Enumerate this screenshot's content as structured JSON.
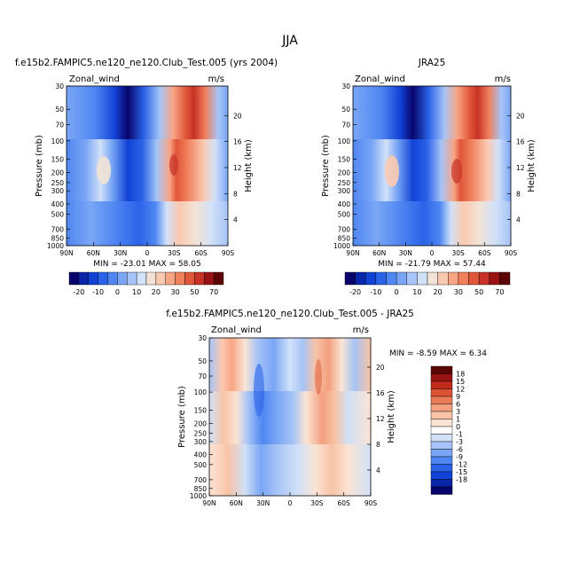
{
  "page": {
    "title": "JJA"
  },
  "panels": {
    "model": {
      "title": "f.e15b2.FAMPIC5.ne120_ne120.Club_Test.005 (yrs 2004)",
      "varname": "Zonal_wind",
      "units": "m/s",
      "stats": "MIN = -23.01   MAX =  58.05"
    },
    "obs": {
      "title": "JRA25",
      "varname": "Zonal_wind",
      "units": "m/s",
      "stats": "MIN = -21.79   MAX =  57.44"
    },
    "diff": {
      "title": "f.e15b2.FAMPIC5.ne120_ne120.Club_Test.005 - JRA25",
      "varname": "Zonal_wind",
      "units": "m/s",
      "stats": "MIN =  -8.59   MAX =   6.34"
    }
  },
  "chart_data": [
    {
      "type": "heatmap",
      "panel": "model",
      "xlabel": "",
      "ylabel": "Pressure (mb)",
      "ylabel_right": "Height (km)",
      "x_ticks": [
        "90N",
        "60N",
        "30N",
        "0",
        "30S",
        "60S",
        "90S"
      ],
      "y_ticks": [
        "30",
        "50",
        "70",
        "100",
        "150",
        "200",
        "250",
        "300",
        "400",
        "500",
        "700",
        "850",
        "1000"
      ],
      "right_ticks": [
        "4",
        "8",
        "12",
        "16",
        "20"
      ],
      "ylim": [
        1000,
        30
      ],
      "log_scale_y": true,
      "colorbar_labels": [
        "-20",
        "-10",
        "0",
        "10",
        "20",
        "30",
        "50",
        "70"
      ],
      "min": -23.01,
      "max": 58.05
    },
    {
      "type": "heatmap",
      "panel": "obs",
      "xlabel": "",
      "ylabel": "Pressure (mb)",
      "ylabel_right": "Height (km)",
      "x_ticks": [
        "90N",
        "60N",
        "30N",
        "0",
        "30S",
        "60S",
        "90S"
      ],
      "y_ticks": [
        "30",
        "50",
        "70",
        "100",
        "150",
        "200",
        "250",
        "300",
        "400",
        "500",
        "700",
        "850",
        "1000"
      ],
      "right_ticks": [
        "4",
        "8",
        "12",
        "16",
        "20"
      ],
      "ylim": [
        1000,
        30
      ],
      "log_scale_y": true,
      "colorbar_labels": [
        "-20",
        "-10",
        "0",
        "10",
        "20",
        "30",
        "50",
        "70"
      ],
      "min": -21.79,
      "max": 57.44
    },
    {
      "type": "heatmap",
      "panel": "diff",
      "xlabel": "",
      "ylabel": "Pressure (mb)",
      "ylabel_right": "Height (km)",
      "x_ticks": [
        "90N",
        "60N",
        "30N",
        "0",
        "30S",
        "60S",
        "90S"
      ],
      "y_ticks": [
        "30",
        "50",
        "70",
        "100",
        "150",
        "200",
        "250",
        "300",
        "400",
        "500",
        "700",
        "850",
        "1000"
      ],
      "right_ticks": [
        "4",
        "8",
        "12",
        "16",
        "20"
      ],
      "ylim": [
        1000,
        30
      ],
      "log_scale_y": true,
      "colorbar_labels": [
        "18",
        "15",
        "12",
        "9",
        "6",
        "3",
        "1",
        "0",
        "-1",
        "-3",
        "-6",
        "-9",
        "-12",
        "-15",
        "-18"
      ],
      "min": -8.59,
      "max": 6.34
    }
  ],
  "colors": {
    "full_palette": [
      "#08046b",
      "#0a26a8",
      "#1142d6",
      "#2a63e8",
      "#4f86f2",
      "#7aa6f5",
      "#a6c4f7",
      "#d1e1f8",
      "#f2e3d6",
      "#fbc9b0",
      "#f8a584",
      "#f07f5c",
      "#e0563a",
      "#c83226",
      "#9a1313",
      "#5c0505"
    ],
    "diff_palette": [
      "#08046b",
      "#0a26a8",
      "#1142d6",
      "#2a63e8",
      "#4f86f2",
      "#7aa6f5",
      "#a6c4f7",
      "#d1e1f8",
      "#ffffff",
      "#fbe4d4",
      "#f8c3a6",
      "#f3a07f",
      "#ea7b57",
      "#dc5232",
      "#c22a1d",
      "#9a1313",
      "#5c0505"
    ]
  }
}
